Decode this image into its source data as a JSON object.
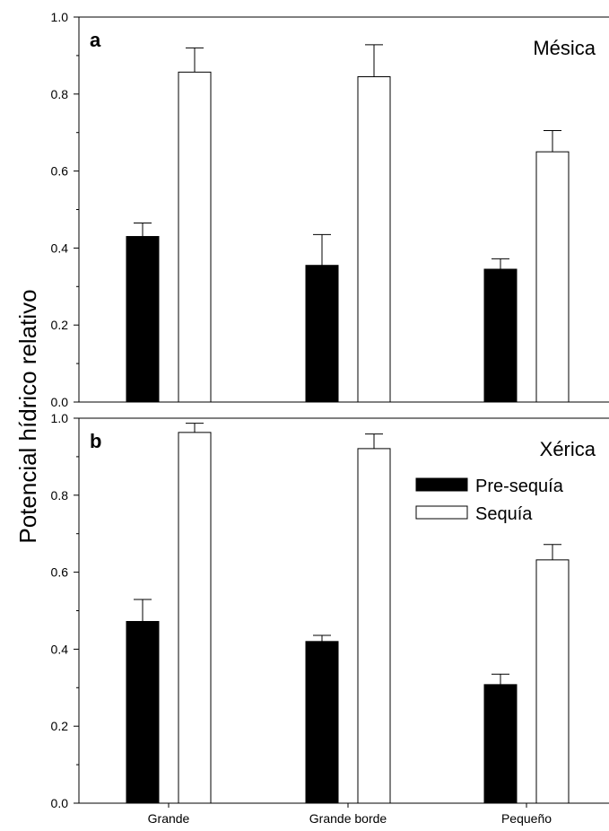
{
  "y_axis_label": "Potencial hídrico relativo",
  "legend": {
    "items": [
      {
        "label": "Pre-sequía",
        "fill": "#000000"
      },
      {
        "label": "Sequía",
        "fill": "#ffffff"
      }
    ]
  },
  "chart_data": [
    {
      "type": "bar",
      "panel_letter": "a",
      "title": "Mésica",
      "categories": [
        "Grande",
        "Grande borde",
        "Pequeño"
      ],
      "ylim": [
        0,
        1.0
      ],
      "yticks": [
        "0.0",
        "0.2",
        "0.4",
        "0.6",
        "0.8",
        "1.0"
      ],
      "grid": false,
      "series": [
        {
          "name": "Pre-sequía",
          "color": "#000000",
          "values": [
            0.43,
            0.355,
            0.345
          ],
          "errors": [
            0.035,
            0.08,
            0.027
          ]
        },
        {
          "name": "Sequía",
          "color": "#ffffff",
          "values": [
            0.857,
            0.845,
            0.65
          ],
          "errors": [
            0.063,
            0.083,
            0.055
          ]
        }
      ]
    },
    {
      "type": "bar",
      "panel_letter": "b",
      "title": "Xérica",
      "categories": [
        "Grande",
        "Grande borde",
        "Pequeño"
      ],
      "xticklabels": [
        "Grande",
        "Grande borde",
        "Pequeño"
      ],
      "ylim": [
        0,
        1.0
      ],
      "yticks": [
        "0.0",
        "0.2",
        "0.4",
        "0.6",
        "0.8",
        "1.0"
      ],
      "grid": false,
      "legend_position": "top-right",
      "series": [
        {
          "name": "Pre-sequía",
          "color": "#000000",
          "values": [
            0.472,
            0.42,
            0.308
          ],
          "errors": [
            0.057,
            0.016,
            0.027
          ]
        },
        {
          "name": "Sequía",
          "color": "#ffffff",
          "values": [
            0.963,
            0.921,
            0.632
          ],
          "errors": [
            0.024,
            0.038,
            0.04
          ]
        }
      ]
    }
  ]
}
